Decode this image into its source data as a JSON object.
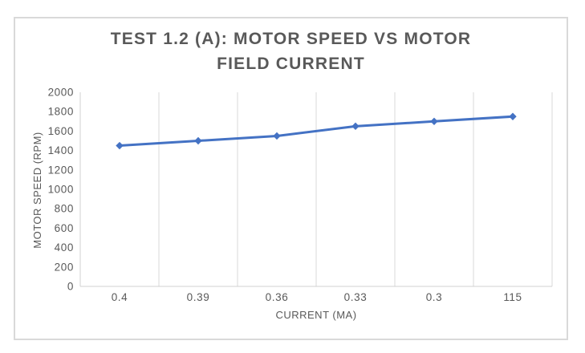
{
  "chart_data": {
    "type": "line",
    "title": "TEST 1.2 (A): MOTOR SPEED VS MOTOR FIELD CURRENT",
    "title_lines": [
      "TEST 1.2 (A): MOTOR SPEED VS MOTOR",
      "FIELD CURRENT"
    ],
    "xlabel": "CURRENT (MA)",
    "ylabel": "MOTOR SPEED (RPM)",
    "categories": [
      "0.4",
      "0.39",
      "0.36",
      "0.33",
      "0.3",
      "115"
    ],
    "values": [
      1450,
      1500,
      1550,
      1650,
      1700,
      1750
    ],
    "ylim": [
      0,
      2000
    ],
    "y_ticks": [
      0,
      200,
      400,
      600,
      800,
      1000,
      1200,
      1400,
      1600,
      1800,
      2000
    ],
    "grid": "vertical-only",
    "legend": "none",
    "marker": "diamond",
    "colors": {
      "line": "#4472C4",
      "text": "#595959",
      "gridline": "#D9D9D9",
      "axis_line": "#D0D0D0",
      "frame_border": "#D9D9D9",
      "background": "#FFFFFF"
    }
  }
}
